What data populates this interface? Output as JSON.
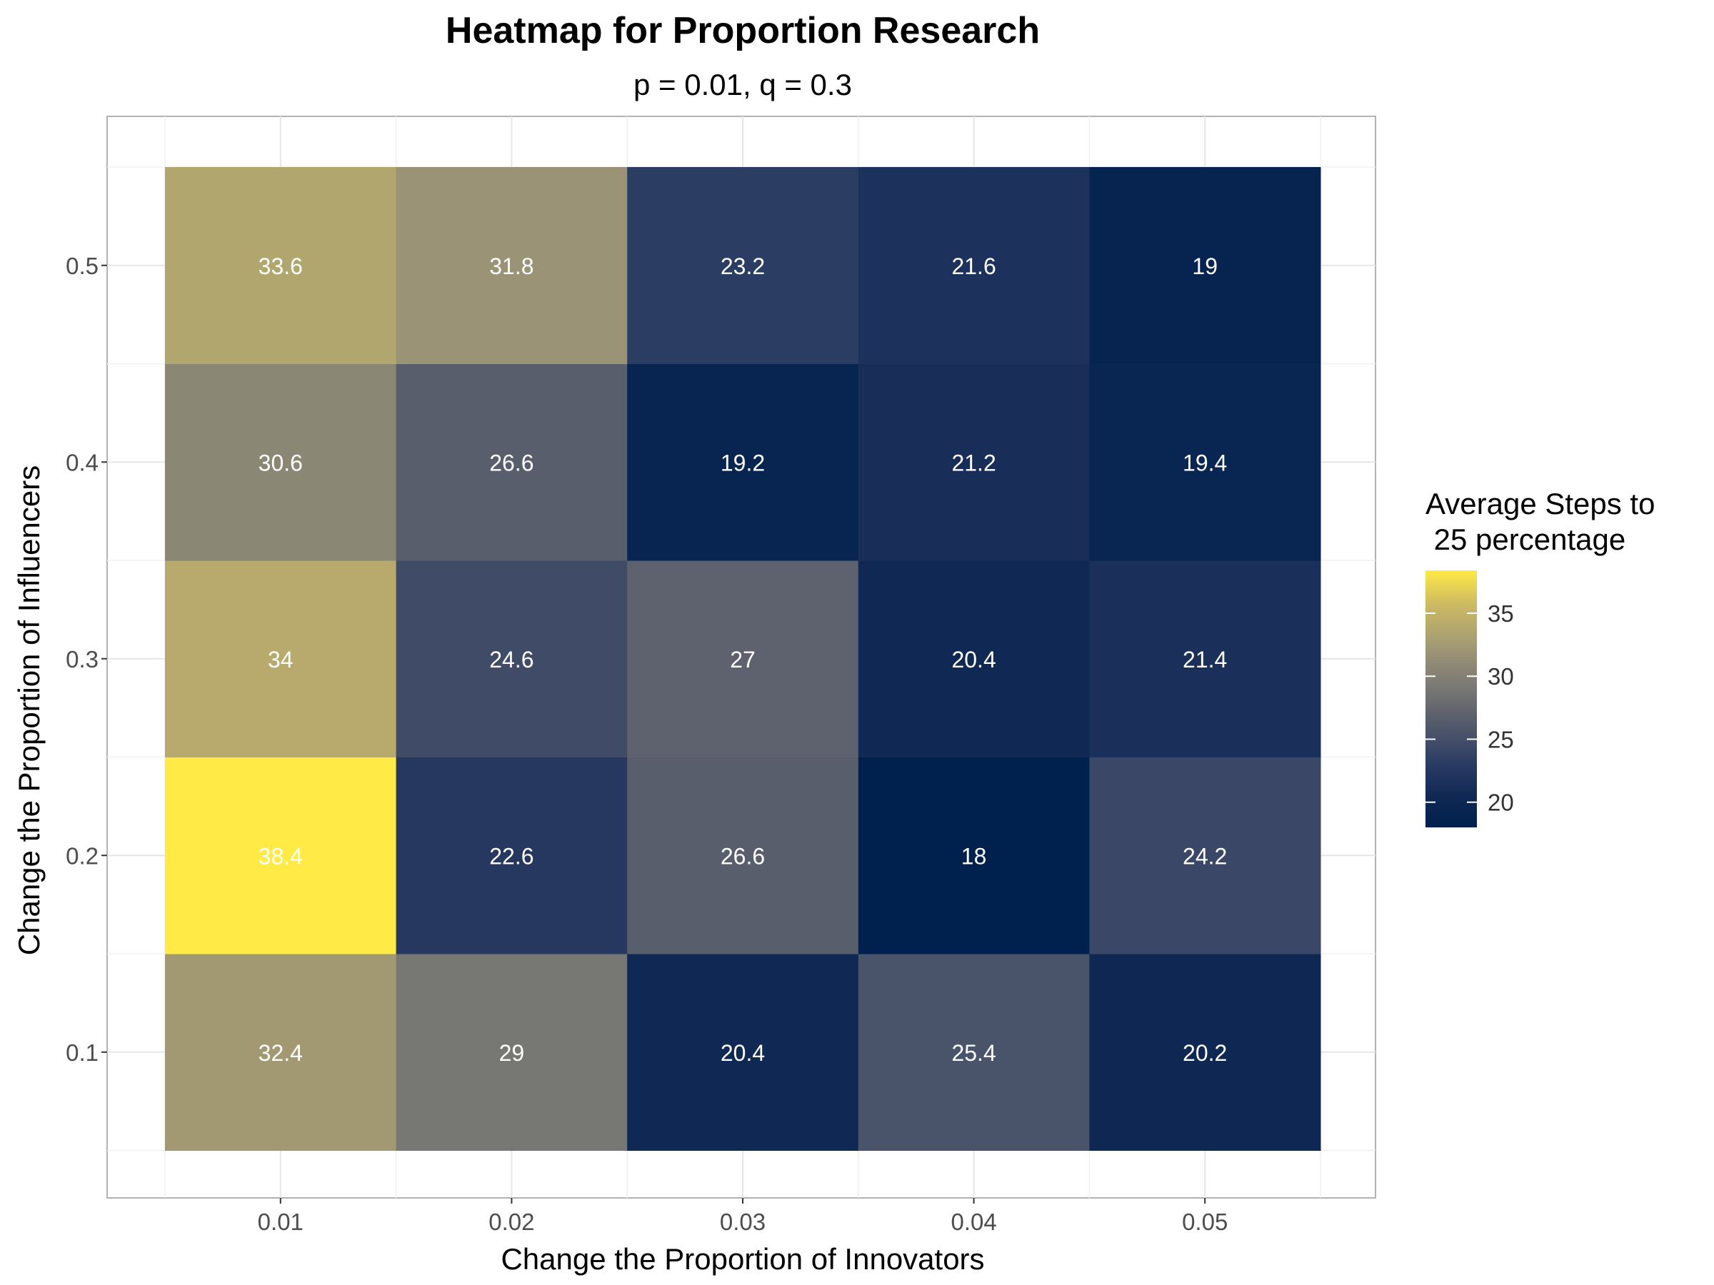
{
  "chart_data": {
    "type": "heatmap",
    "title": "Heatmap for Proportion Research",
    "subtitle": "p = 0.01, q = 0.3",
    "xlabel": "Change the Proportion of Innovators",
    "ylabel": "Change the Proportion of Influencers",
    "x": [
      "0.01",
      "0.02",
      "0.03",
      "0.04",
      "0.05"
    ],
    "y": [
      "0.1",
      "0.2",
      "0.3",
      "0.4",
      "0.5"
    ],
    "values": [
      [
        32.4,
        29,
        20.4,
        25.4,
        20.2
      ],
      [
        38.4,
        22.6,
        26.6,
        18,
        24.2
      ],
      [
        34,
        24.6,
        27,
        20.4,
        21.4
      ],
      [
        30.6,
        26.6,
        19.2,
        21.2,
        19.4
      ],
      [
        33.6,
        31.8,
        23.2,
        21.6,
        19
      ]
    ],
    "legend": {
      "title_lines": [
        "Average Steps to",
        " 25 percentage"
      ],
      "ticks": [
        20,
        25,
        30,
        35
      ],
      "range": [
        18,
        38.4
      ],
      "placement": "right"
    },
    "grid": true,
    "colors": {
      "low": "#00204d",
      "mid": "#7c7b78",
      "high": "#ffea46",
      "panel_border": "#b3b3b3",
      "grid": "#e6e6e6"
    }
  }
}
